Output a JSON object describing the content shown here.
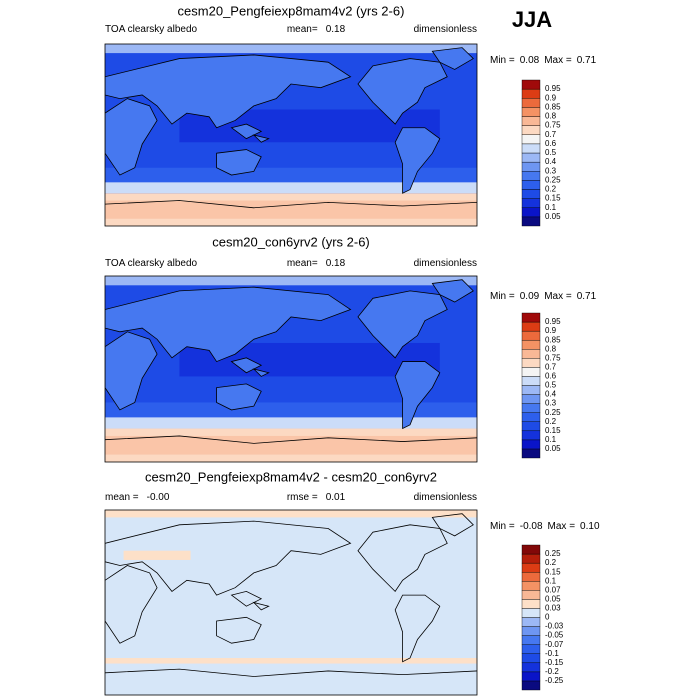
{
  "season": "JJA",
  "panels": [
    {
      "title": "cesm20_Pengfeiexp8mam4v2 (yrs 2-6)",
      "left": [
        "TOA clearsky albedo"
      ],
      "center": [
        "mean=",
        "0.18"
      ],
      "right": [
        "dimensionless"
      ],
      "minmax": [
        "Min =",
        "0.08",
        "Max =",
        "0.71"
      ],
      "colorbar": {
        "colors": [
          "#0a0a80",
          "#0a14c8",
          "#1432dc",
          "#1e4be6",
          "#2d5fec",
          "#4678f0",
          "#6e96f2",
          "#9cb8f5",
          "#cbdcf8",
          "#f4f4f4",
          "#fcd9c2",
          "#f9b896",
          "#f49264",
          "#ec6a3c",
          "#dc3c14",
          "#a00a0a"
        ],
        "labels": [
          "0.05",
          "0.1",
          "0.15",
          "0.2",
          "0.25",
          "0.3",
          "0.4",
          "0.5",
          "0.6",
          "0.7",
          "0.75",
          "0.8",
          "0.85",
          "0.9",
          "0.95"
        ]
      }
    },
    {
      "title": "cesm20_con6yrv2 (yrs 2-6)",
      "left": [
        "TOA clearsky albedo"
      ],
      "center": [
        "mean=",
        "0.18"
      ],
      "right": [
        "dimensionless"
      ],
      "minmax": [
        "Min =",
        "0.09",
        "Max =",
        "0.71"
      ],
      "colorbar": {
        "colors": [
          "#0a0a80",
          "#0a14c8",
          "#1432dc",
          "#1e4be6",
          "#2d5fec",
          "#4678f0",
          "#6e96f2",
          "#9cb8f5",
          "#cbdcf8",
          "#f4f4f4",
          "#fcd9c2",
          "#f9b896",
          "#f49264",
          "#ec6a3c",
          "#dc3c14",
          "#a00a0a"
        ],
        "labels": [
          "0.05",
          "0.1",
          "0.15",
          "0.2",
          "0.25",
          "0.3",
          "0.4",
          "0.5",
          "0.6",
          "0.7",
          "0.75",
          "0.8",
          "0.85",
          "0.9",
          "0.95"
        ]
      }
    },
    {
      "title": "cesm20_Pengfeiexp8mam4v2 - cesm20_con6yrv2",
      "left": [
        "mean =",
        "-0.00"
      ],
      "center": [
        "rmse =",
        "0.01"
      ],
      "right": [
        "dimensionless"
      ],
      "minmax": [
        "Min =",
        "-0.08",
        "Max =",
        "0.10"
      ],
      "colorbar": {
        "colors": [
          "#0a0a80",
          "#0a14c8",
          "#1432dc",
          "#1e4be6",
          "#2d5fec",
          "#4678f0",
          "#6e96f2",
          "#9cb8f5",
          "#d6e6f8",
          "#fde0c8",
          "#f9b896",
          "#f49264",
          "#ec6a3c",
          "#dc3c14",
          "#b41e0a",
          "#820808"
        ],
        "labels": [
          "-0.25",
          "-0.2",
          "-0.15",
          "-0.1",
          "-0.07",
          "-0.05",
          "-0.03",
          "0",
          "0.03",
          "0.05",
          "0.07",
          "0.1",
          "0.15",
          "0.2",
          "0.25"
        ]
      }
    }
  ]
}
